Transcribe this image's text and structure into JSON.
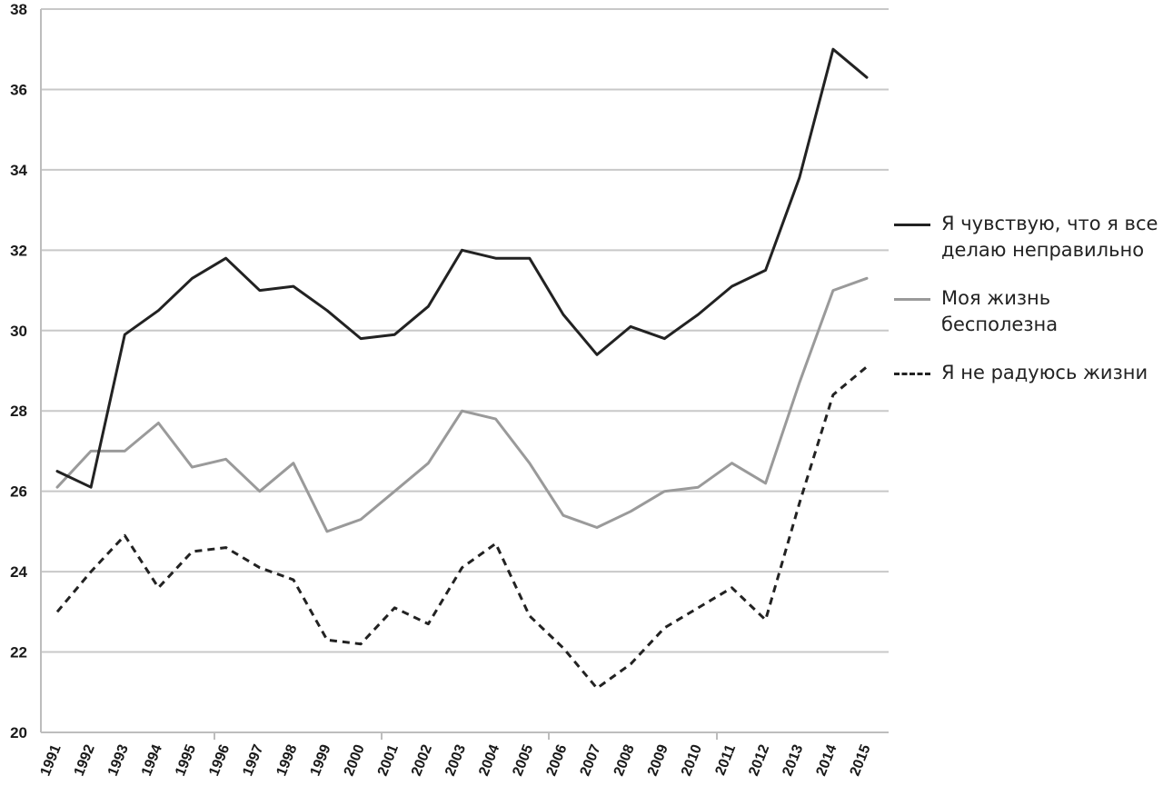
{
  "chart_data": {
    "type": "line",
    "title": "",
    "xlabel": "",
    "ylabel": "",
    "x": [
      "1991",
      "1992",
      "1993",
      "1994",
      "1995",
      "1996",
      "1997",
      "1998",
      "1999",
      "2000",
      "2001",
      "2002",
      "2003",
      "2004",
      "2005",
      "2006",
      "2007",
      "2008",
      "2009",
      "2010",
      "2011",
      "2012",
      "2013",
      "2014",
      "2015"
    ],
    "ylim": [
      20,
      38
    ],
    "yticks": [
      "20",
      "22",
      "24",
      "26",
      "28",
      "30",
      "32",
      "34",
      "36",
      "38"
    ],
    "grid": true,
    "legend_position": "right",
    "series": [
      {
        "name": "Я чувствую, что я все делаю неправильно",
        "color": "#222222",
        "style": "solid",
        "values": [
          26.5,
          26.1,
          29.9,
          30.5,
          31.3,
          31.8,
          31.0,
          31.1,
          30.5,
          29.8,
          29.9,
          30.6,
          32.0,
          31.8,
          31.8,
          30.4,
          29.4,
          30.1,
          29.8,
          30.4,
          31.1,
          31.5,
          33.8,
          37.0,
          36.3
        ]
      },
      {
        "name": "Моя жизнь бесполезна",
        "color": "#9a9a9a",
        "style": "solid",
        "values": [
          26.1,
          27.0,
          27.0,
          27.7,
          26.6,
          26.8,
          26.0,
          26.7,
          25.0,
          25.3,
          26.0,
          26.7,
          28.0,
          27.8,
          26.7,
          25.4,
          25.1,
          25.5,
          26.0,
          26.1,
          26.7,
          26.2,
          28.7,
          31.0,
          31.3
        ]
      },
      {
        "name": "Я не радуюсь жизни",
        "color": "#222222",
        "style": "dashed",
        "values": [
          23.0,
          24.0,
          24.9,
          23.6,
          24.5,
          24.6,
          24.1,
          23.8,
          22.3,
          22.2,
          23.1,
          22.7,
          24.1,
          24.7,
          22.9,
          22.1,
          21.1,
          21.7,
          22.6,
          23.1,
          23.6,
          22.8,
          25.7,
          28.4,
          29.1
        ]
      }
    ]
  }
}
